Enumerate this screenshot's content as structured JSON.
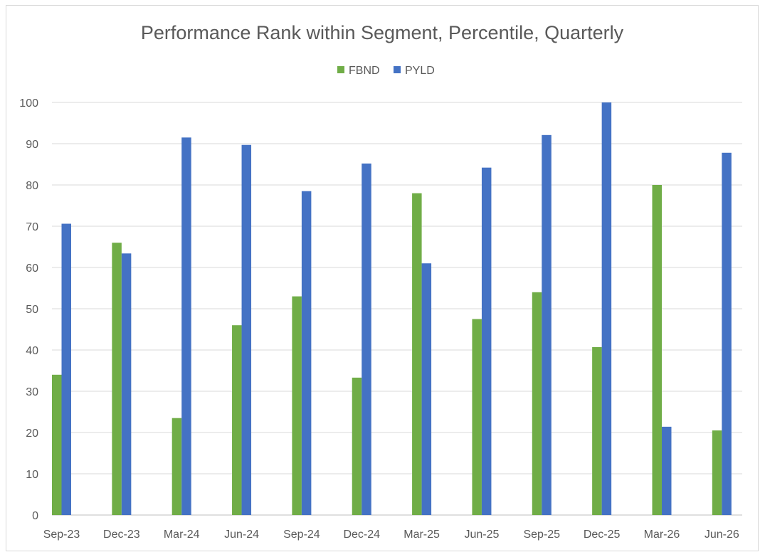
{
  "chart_data": {
    "type": "bar",
    "title": "Performance Rank within Segment, Percentile, Quarterly",
    "xlabel": "",
    "ylabel": "",
    "categories": [
      "Sep-23",
      "Dec-23",
      "Mar-24",
      "Jun-24",
      "Sep-24",
      "Dec-24",
      "Mar-25",
      "Jun-25",
      "Sep-25",
      "Dec-25",
      "Mar-26",
      "Jun-26"
    ],
    "series": [
      {
        "name": "FBND",
        "color": "#70ad47",
        "values": [
          34,
          66,
          23.5,
          46,
          53,
          33.3,
          78,
          47.5,
          54,
          40.7,
          80,
          20.5
        ]
      },
      {
        "name": "PYLD",
        "color": "#4472c4",
        "values": [
          70.6,
          63.4,
          91.5,
          89.7,
          78.5,
          85.2,
          61,
          84.2,
          92.1,
          100,
          21.4,
          87.8
        ]
      }
    ],
    "ylim": [
      0,
      100
    ],
    "yticks": [
      0,
      10,
      20,
      30,
      40,
      50,
      60,
      70,
      80,
      90,
      100
    ],
    "grid": true,
    "legend_position": "top"
  }
}
